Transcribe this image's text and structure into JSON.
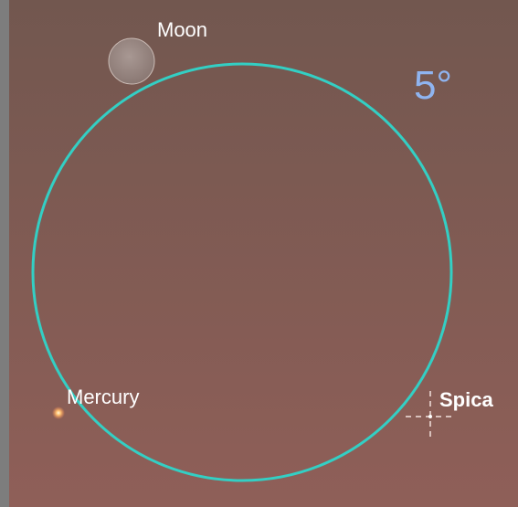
{
  "objects": {
    "moon": "Moon",
    "mercury": "Mercury",
    "spica": "Spica"
  },
  "field_of_view": "5°"
}
